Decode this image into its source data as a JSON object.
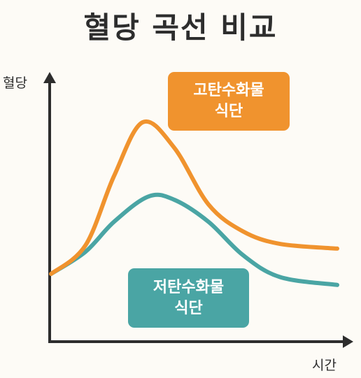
{
  "title": "혈당 곡선 비교",
  "chart_data": {
    "type": "line",
    "ylabel": "혈당",
    "xlabel": "시간",
    "grid": false,
    "legend": "inline-labels",
    "series": [
      {
        "key": "high",
        "label_lines": [
          "고탄수화물",
          "식단"
        ],
        "color": "#f0932e",
        "points": [
          [
            0.0,
            0.0
          ],
          [
            0.12,
            0.18
          ],
          [
            0.22,
            0.62
          ],
          [
            0.32,
            0.96
          ],
          [
            0.43,
            0.8
          ],
          [
            0.55,
            0.44
          ],
          [
            0.67,
            0.27
          ],
          [
            0.8,
            0.19
          ],
          [
            1.0,
            0.16
          ]
        ]
      },
      {
        "key": "low",
        "label_lines": [
          "저탄수화물",
          "식단"
        ],
        "color": "#4aa5a4",
        "points": [
          [
            0.0,
            0.0
          ],
          [
            0.12,
            0.14
          ],
          [
            0.22,
            0.33
          ],
          [
            0.34,
            0.49
          ],
          [
            0.43,
            0.47
          ],
          [
            0.55,
            0.33
          ],
          [
            0.67,
            0.12
          ],
          [
            0.8,
            -0.02
          ],
          [
            1.0,
            -0.07
          ]
        ]
      }
    ]
  }
}
